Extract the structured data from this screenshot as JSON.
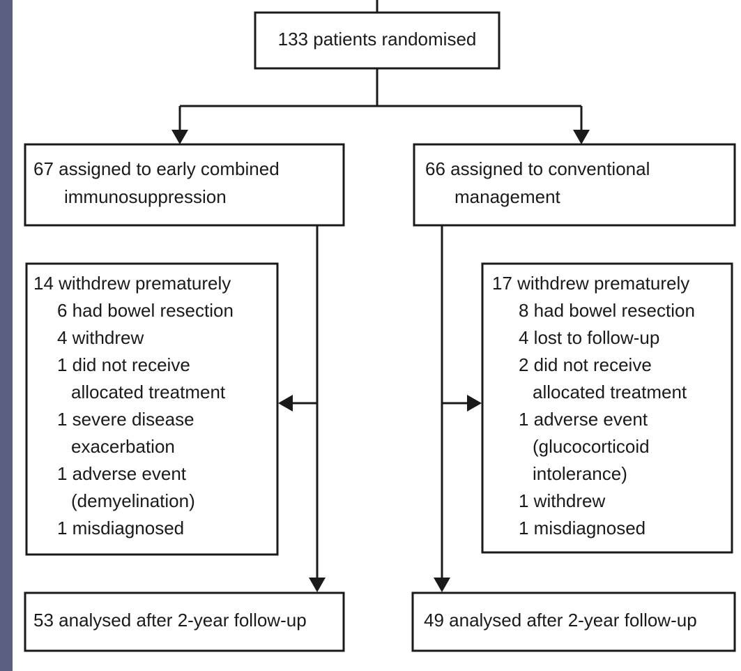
{
  "randomised": "133 patients randomised",
  "arms": [
    {
      "assigned": [
        "67 assigned to early combined",
        "immunosuppression"
      ],
      "withdrawn": {
        "heading": "14 withdrew prematurely",
        "reasons": [
          [
            "6 had bowel resection"
          ],
          [
            "4 withdrew"
          ],
          [
            "1 did not receive",
            "allocated treatment"
          ],
          [
            "1 severe disease",
            "exacerbation"
          ],
          [
            "1 adverse event",
            "(demyelination)"
          ],
          [
            "1 misdiagnosed"
          ]
        ]
      },
      "analysed": "53 analysed after 2-year follow-up"
    },
    {
      "assigned": [
        "66 assigned to conventional",
        "management"
      ],
      "withdrawn": {
        "heading": "17 withdrew prematurely",
        "reasons": [
          [
            "8 had bowel resection"
          ],
          [
            "4 lost to follow-up"
          ],
          [
            "2 did not receive",
            "allocated treatment"
          ],
          [
            "1 adverse event",
            "(glucocorticoid",
            "intolerance)"
          ],
          [
            "1 withdrew"
          ],
          [
            "1 misdiagnosed"
          ]
        ]
      },
      "analysed": "49 analysed after 2-year follow-up"
    }
  ]
}
